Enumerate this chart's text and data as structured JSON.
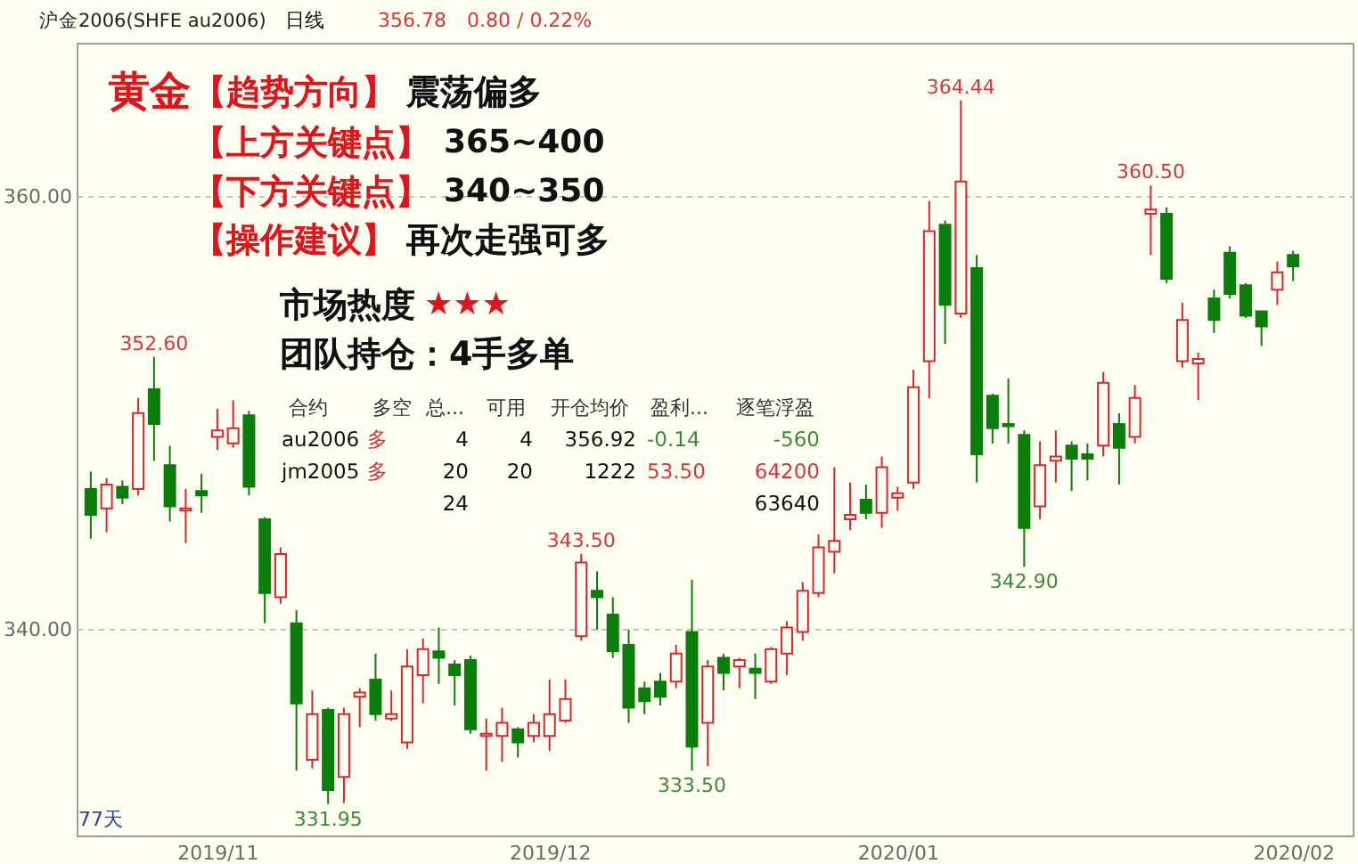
{
  "chart_data": {
    "type": "candlestick",
    "title": "沪金2006(SHFE au2006)",
    "categories": [
      null,
      null,
      null,
      null,
      null,
      null,
      null,
      null,
      "2019/11",
      null,
      null,
      null,
      null,
      null,
      null,
      null,
      null,
      null,
      null,
      null,
      null,
      null,
      null,
      null,
      null,
      null,
      null,
      null,
      null,
      "2019/12",
      null,
      null,
      null,
      null,
      null,
      null,
      null,
      null,
      null,
      null,
      null,
      null,
      null,
      null,
      null,
      null,
      null,
      null,
      null,
      null,
      null,
      "2020/01",
      null,
      null,
      null,
      null,
      null,
      null,
      null,
      null,
      null,
      null,
      null,
      null,
      null,
      null,
      null,
      null,
      null,
      null,
      null,
      null,
      null,
      null,
      null,
      null,
      "2020/02"
    ],
    "ohlc": [
      [
        346.5,
        347.3,
        344.2,
        345.3
      ],
      [
        345.6,
        347.0,
        344.5,
        346.7
      ],
      [
        346.6,
        346.9,
        345.8,
        346.1
      ],
      [
        346.5,
        350.7,
        346.2,
        350.0
      ],
      [
        351.1,
        352.6,
        347.8,
        349.5
      ],
      [
        347.6,
        348.5,
        345.0,
        345.7
      ],
      [
        345.5,
        346.5,
        344.0,
        345.6
      ],
      [
        346.4,
        347.2,
        345.4,
        346.2
      ],
      [
        348.9,
        350.2,
        348.3,
        349.2
      ],
      [
        348.6,
        350.6,
        348.4,
        349.3
      ],
      [
        349.9,
        350.1,
        346.2,
        346.6
      ],
      [
        345.1,
        345.2,
        340.3,
        341.7
      ],
      [
        341.5,
        343.8,
        341.2,
        343.5
      ],
      [
        340.3,
        340.9,
        333.5,
        336.6
      ],
      [
        334.0,
        337.2,
        333.6,
        336.1
      ],
      [
        336.3,
        336.4,
        331.95,
        332.6
      ],
      [
        333.2,
        336.4,
        332.0,
        336.1
      ],
      [
        336.9,
        337.3,
        335.5,
        337.1
      ],
      [
        337.7,
        338.9,
        335.8,
        336.1
      ],
      [
        335.9,
        337.2,
        335.8,
        336.1
      ],
      [
        334.8,
        339.1,
        334.5,
        338.3
      ],
      [
        337.9,
        339.6,
        336.6,
        339.1
      ],
      [
        339.0,
        340.1,
        337.5,
        338.7
      ],
      [
        338.4,
        338.6,
        336.5,
        337.9
      ],
      [
        338.6,
        338.8,
        335.2,
        335.4
      ],
      [
        335.1,
        335.9,
        333.5,
        335.2
      ],
      [
        335.1,
        336.4,
        333.9,
        335.7
      ],
      [
        335.4,
        335.5,
        334.1,
        334.8
      ],
      [
        335.1,
        336.1,
        334.8,
        335.7
      ],
      [
        335.1,
        337.7,
        334.4,
        336.1
      ],
      [
        335.8,
        337.7,
        335.7,
        336.8
      ],
      [
        339.7,
        343.5,
        339.5,
        343.1
      ],
      [
        341.8,
        342.7,
        340.0,
        341.5
      ],
      [
        340.7,
        341.5,
        338.7,
        339.0
      ],
      [
        339.3,
        340.0,
        335.7,
        336.4
      ],
      [
        337.3,
        337.6,
        336.1,
        336.7
      ],
      [
        337.6,
        338.0,
        336.5,
        336.9
      ],
      [
        337.6,
        339.3,
        337.3,
        338.9
      ],
      [
        339.9,
        342.3,
        333.5,
        334.6
      ],
      [
        335.7,
        338.6,
        333.7,
        338.3
      ],
      [
        338.7,
        338.9,
        337.2,
        338.0
      ],
      [
        338.3,
        338.7,
        337.3,
        338.6
      ],
      [
        338.2,
        338.9,
        336.8,
        338.0
      ],
      [
        337.6,
        339.2,
        337.5,
        339.1
      ],
      [
        338.9,
        340.4,
        337.9,
        340.1
      ],
      [
        339.9,
        342.2,
        339.5,
        341.8
      ],
      [
        341.7,
        344.4,
        341.5,
        343.8
      ],
      [
        343.6,
        347.5,
        342.6,
        344.1
      ],
      [
        345.1,
        346.8,
        344.6,
        345.3
      ],
      [
        346.0,
        346.7,
        345.1,
        345.4
      ],
      [
        345.4,
        348.0,
        344.7,
        347.5
      ],
      [
        346.1,
        346.6,
        345.5,
        346.3
      ],
      [
        346.8,
        352.0,
        346.5,
        351.2
      ],
      [
        352.4,
        359.8,
        350.7,
        358.4
      ],
      [
        358.7,
        358.9,
        353.2,
        355.0
      ],
      [
        354.6,
        364.44,
        354.4,
        360.7
      ],
      [
        356.7,
        357.3,
        346.8,
        348.1
      ],
      [
        350.8,
        350.9,
        348.6,
        349.3
      ],
      [
        349.5,
        351.6,
        348.6,
        349.4
      ],
      [
        349.0,
        349.2,
        342.9,
        344.7
      ],
      [
        345.7,
        348.7,
        345.1,
        347.6
      ],
      [
        347.8,
        349.2,
        346.8,
        348.0
      ],
      [
        348.5,
        348.7,
        346.4,
        347.9
      ],
      [
        348.1,
        348.6,
        346.9,
        347.9
      ],
      [
        348.5,
        351.9,
        348.0,
        351.4
      ],
      [
        349.5,
        350.0,
        346.7,
        348.4
      ],
      [
        348.9,
        351.3,
        348.6,
        350.7
      ],
      [
        359.2,
        360.5,
        357.3,
        359.4
      ],
      [
        359.2,
        359.5,
        356.0,
        356.2
      ],
      [
        352.4,
        355.1,
        352.1,
        354.3
      ],
      [
        352.3,
        352.8,
        350.6,
        352.5
      ],
      [
        355.3,
        355.7,
        353.7,
        354.3
      ],
      [
        357.4,
        357.7,
        355.3,
        355.5
      ],
      [
        355.9,
        356.0,
        354.4,
        354.5
      ],
      [
        354.7,
        354.7,
        353.1,
        354.0
      ],
      [
        355.7,
        357.0,
        355.0,
        356.5
      ],
      [
        357.3,
        357.5,
        356.1,
        356.78
      ]
    ],
    "colors": [
      "#0a7d0a",
      "#d9262c",
      "#0a7d0a",
      "#d9262c",
      "#0a7d0a",
      "#0a7d0a",
      "#d9262c",
      "#0a7d0a",
      "#d9262c",
      "#d9262c",
      "#0a7d0a",
      "#0a7d0a",
      "#d9262c",
      "#0a7d0a",
      "#d9262c",
      "#0a7d0a",
      "#d9262c",
      "#d9262c",
      "#0a7d0a",
      "#d9262c",
      "#d9262c",
      "#d9262c",
      "#0a7d0a",
      "#0a7d0a",
      "#0a7d0a",
      "#d9262c",
      "#d9262c",
      "#0a7d0a",
      "#d9262c",
      "#d9262c",
      "#d9262c",
      "#d9262c",
      "#0a7d0a",
      "#0a7d0a",
      "#0a7d0a",
      "#0a7d0a",
      "#0a7d0a",
      "#d9262c",
      "#0a7d0a",
      "#d9262c",
      "#0a7d0a",
      "#d9262c",
      "#0a7d0a",
      "#d9262c",
      "#d9262c",
      "#d9262c",
      "#d9262c",
      "#d9262c",
      "#d9262c",
      "#0a7d0a",
      "#d9262c",
      "#d9262c",
      "#d9262c",
      "#d9262c",
      "#0a7d0a",
      "#d9262c",
      "#0a7d0a",
      "#0a7d0a",
      "#0a7d0a",
      "#0a7d0a",
      "#d9262c",
      "#d9262c",
      "#0a7d0a",
      "#0a7d0a",
      "#d9262c",
      "#0a7d0a",
      "#d9262c",
      "#d9262c",
      "#0a7d0a",
      "#d9262c",
      "#d9262c",
      "#0a7d0a",
      "#0a7d0a",
      "#0a7d0a",
      "#0a7d0a",
      "#d9262c",
      "#0a7d0a"
    ],
    "ylim": [
      330.5,
      367.1
    ],
    "yticks": [
      {
        "value": 360,
        "label": "360.00"
      },
      {
        "value": 340,
        "label": "340.00"
      }
    ],
    "grid": "y",
    "annotations": [
      "日线",
      "356.78",
      "0.80 / 0.22%",
      "黄金",
      "【趋势方向】",
      "震荡偏多",
      "【上方关键点】",
      "365~400",
      "【下方关键点】",
      "340~350",
      "【操作建议】",
      "再次走强可多",
      "市场热度",
      "★★★",
      "团队持仓：4手多单",
      "合约",
      "多空",
      "总...",
      "可用",
      "开仓均价",
      "盈利...",
      "逐笔浮盈",
      "au2006",
      "多",
      "4",
      "4",
      "356.92",
      "-0.14",
      "-560",
      "jm2005",
      "多",
      "20",
      "20",
      "1222",
      "53.50",
      "64200",
      "24",
      "63640",
      "77天",
      {
        "text": "352.60",
        "y": 352.6
      },
      {
        "text": "364.44",
        "y": 364.44
      },
      {
        "text": "360.50",
        "y": 360.5
      },
      {
        "text": "343.50",
        "y": 343.5
      },
      {
        "text": "331.95",
        "y": 331.95
      },
      {
        "text": "333.50",
        "y": 333.5
      },
      {
        "text": "342.90",
        "y": 342.9
      }
    ]
  }
}
